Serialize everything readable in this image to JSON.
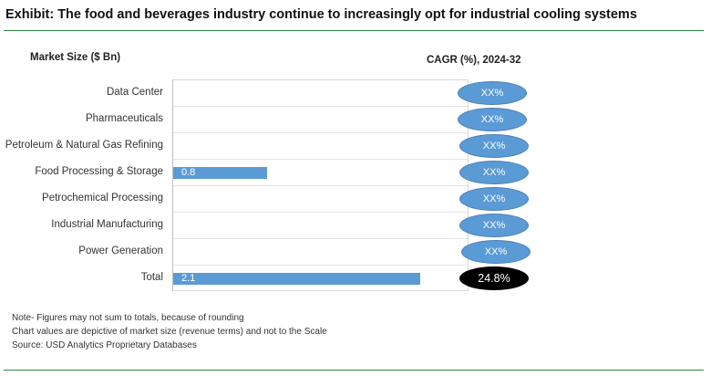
{
  "title": "Exhibit: The food and beverages industry continue to increasingly opt for industrial cooling systems",
  "chart_data": {
    "type": "bar",
    "orientation": "horizontal",
    "ylabel": "Market Size ($ Bn)",
    "categories": [
      "Data Center",
      "Pharmaceuticals",
      "Petroleum & Natural Gas Refining",
      "Food Processing & Storage",
      "Petrochemical Processing",
      "Industrial Manufacturing",
      "Power Generation",
      "Total"
    ],
    "values": [
      null,
      null,
      null,
      0.8,
      null,
      null,
      null,
      2.1
    ],
    "value_labels": [
      "",
      "",
      "",
      "0.8",
      "",
      "",
      "",
      "2.1"
    ],
    "xlim": [
      0,
      2.5
    ],
    "grid": true,
    "cagr_header": "CAGR (%), 2024-32",
    "cagr": [
      "XX%",
      "XX%",
      "XX%",
      "XX%",
      "XX%",
      "XX%",
      "XX%",
      "24.8%"
    ]
  },
  "notes": [
    "Note- Figures may not sum to totals, because of rounding",
    "Chart values are depictive of market size (revenue terms) and not to the Scale",
    "Source: USD Analytics Proprietary Databases"
  ],
  "colors": {
    "bar": "#5b9bd5",
    "cagr_bubble": "#5b9bd5",
    "cagr_total_bubble": "#000000",
    "rule": "#2e8b3e"
  }
}
